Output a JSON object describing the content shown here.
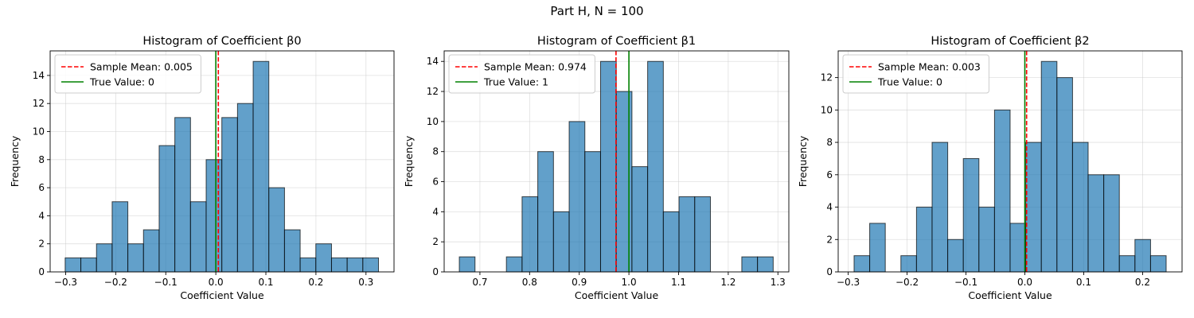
{
  "figure": {
    "suptitle": "Part H, N = 100"
  },
  "colors": {
    "bar_fill": "#1f77b4",
    "bar_edge": "#000000",
    "mean_line": "#ff0000",
    "true_line": "#008000",
    "grid": "#cccccc"
  },
  "chart_data": [
    {
      "type": "bar",
      "title": "Histogram of Coefficient β0",
      "xlabel": "Coefficient Value",
      "ylabel": "Frequency",
      "xlim": [
        -0.331,
        0.356
      ],
      "ylim": [
        0,
        15.75
      ],
      "xticks": [
        -0.3,
        -0.2,
        -0.1,
        0.0,
        0.1,
        0.2,
        0.3
      ],
      "xtick_labels": [
        "−0.3",
        "−0.2",
        "−0.1",
        "0.0",
        "0.1",
        "0.2",
        "0.3"
      ],
      "yticks": [
        0,
        2,
        4,
        6,
        8,
        10,
        12,
        14
      ],
      "bin_edges": [
        -0.301,
        -0.2697,
        -0.2384,
        -0.2071,
        -0.1758,
        -0.1445,
        -0.1132,
        -0.0819,
        -0.0506,
        -0.0193,
        0.012,
        0.0433,
        0.0746,
        0.1059,
        0.1372,
        0.1685,
        0.1998,
        0.2311,
        0.2624,
        0.2937,
        0.325
      ],
      "counts": [
        1,
        1,
        2,
        5,
        2,
        3,
        9,
        11,
        5,
        8,
        11,
        12,
        15,
        6,
        3,
        1,
        2,
        1,
        1,
        1
      ],
      "mean_value": 0.005,
      "true_value": 0,
      "legend": {
        "location": "upper-left",
        "mean_label": "Sample Mean: 0.005",
        "true_label": "True Value: 0"
      },
      "grid": true
    },
    {
      "type": "bar",
      "title": "Histogram of Coefficient β1",
      "xlabel": "Coefficient Value",
      "ylabel": "Frequency",
      "xlim": [
        0.628,
        1.322
      ],
      "ylim": [
        0,
        14.7
      ],
      "xticks": [
        0.7,
        0.8,
        0.9,
        1.0,
        1.1,
        1.2,
        1.3
      ],
      "xtick_labels": [
        "0.7",
        "0.8",
        "0.9",
        "1.0",
        "1.1",
        "1.2",
        "1.3"
      ],
      "yticks": [
        0,
        2,
        4,
        6,
        8,
        10,
        12,
        14
      ],
      "bin_edges": [
        0.6585,
        0.6901,
        0.7217,
        0.7533,
        0.7849,
        0.8165,
        0.8481,
        0.8797,
        0.9113,
        0.9429,
        0.9745,
        1.0061,
        1.0377,
        1.0693,
        1.1009,
        1.1325,
        1.1641,
        1.1957,
        1.2273,
        1.2589,
        1.2905
      ],
      "counts": [
        1,
        0,
        0,
        1,
        5,
        8,
        4,
        10,
        8,
        14,
        12,
        7,
        14,
        4,
        5,
        5,
        0,
        0,
        1,
        1
      ],
      "mean_value": 0.974,
      "true_value": 1,
      "legend": {
        "location": "upper-left",
        "mean_label": "Sample Mean: 0.974",
        "true_label": "True Value: 1"
      },
      "grid": true
    },
    {
      "type": "bar",
      "title": "Histogram of Coefficient β2",
      "xlabel": "Coefficient Value",
      "ylabel": "Frequency",
      "xlim": [
        -0.317,
        0.267
      ],
      "ylim": [
        0,
        13.65
      ],
      "xticks": [
        -0.3,
        -0.2,
        -0.1,
        0.0,
        0.1,
        0.2
      ],
      "xtick_labels": [
        "−0.3",
        "−0.2",
        "−0.1",
        "0.0",
        "0.1",
        "0.2"
      ],
      "yticks": [
        0,
        2,
        4,
        6,
        8,
        10,
        12
      ],
      "bin_edges": [
        -0.29,
        -0.2635,
        -0.237,
        -0.2105,
        -0.184,
        -0.1575,
        -0.131,
        -0.1045,
        -0.078,
        -0.0515,
        -0.025,
        0.0015,
        0.028,
        0.0545,
        0.081,
        0.1075,
        0.134,
        0.1605,
        0.187,
        0.2135,
        0.24
      ],
      "counts": [
        1,
        3,
        0,
        1,
        4,
        8,
        2,
        7,
        4,
        10,
        3,
        8,
        13,
        12,
        8,
        6,
        6,
        1,
        2,
        1
      ],
      "mean_value": 0.003,
      "true_value": 0,
      "legend": {
        "location": "upper-left",
        "mean_label": "Sample Mean: 0.003",
        "true_label": "True Value: 0"
      },
      "grid": true
    }
  ]
}
